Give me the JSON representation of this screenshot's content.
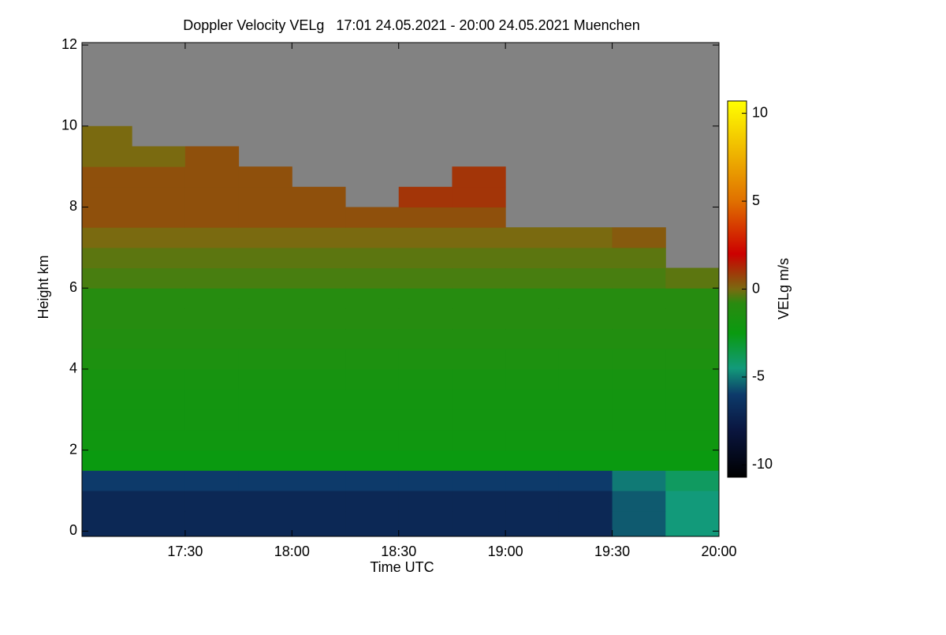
{
  "chart_data": {
    "type": "heatmap",
    "title": "Doppler Velocity VELg   17:01 24.05.2021 - 20:00 24.05.2021 Muenchen",
    "x_label": "Time UTC",
    "y_label": "Height km",
    "colorbar_label": "VELg m/s",
    "xlim": [
      17.0167,
      20.0
    ],
    "xticks": [
      {
        "value": 17.5,
        "label": "17:30"
      },
      {
        "value": 18.0,
        "label": "18:00"
      },
      {
        "value": 18.5,
        "label": "18:30"
      },
      {
        "value": 19.0,
        "label": "19:00"
      },
      {
        "value": 19.5,
        "label": "19:30"
      },
      {
        "value": 20.0,
        "label": "20:00"
      }
    ],
    "ylim": [
      -0.13,
      12.06
    ],
    "yticks": [
      0,
      2,
      4,
      6,
      8,
      10,
      12
    ],
    "clim": [
      -10.7,
      10.7
    ],
    "cticks": [
      -10,
      -5,
      0,
      5,
      10
    ],
    "missing_color": "#828282",
    "colorscale": [
      [
        -10.7,
        "#000000"
      ],
      [
        -8,
        "#0a1640"
      ],
      [
        -6,
        "#0d3a6a"
      ],
      [
        -4.5,
        "#129a7a"
      ],
      [
        -2.5,
        "#0a9a10"
      ],
      [
        -0.8,
        "#2a8a10"
      ],
      [
        0,
        "#7a6a10"
      ],
      [
        2,
        "#cc0000"
      ],
      [
        5,
        "#e07000"
      ],
      [
        10.7,
        "#ffff00"
      ]
    ],
    "x": [
      17.125,
      17.375,
      17.625,
      17.875,
      18.125,
      18.375,
      18.625,
      18.875,
      19.125,
      19.375,
      19.625,
      19.875
    ],
    "y": [
      0.25,
      0.75,
      1.25,
      1.75,
      2.25,
      2.75,
      3.25,
      3.75,
      4.25,
      4.75,
      5.25,
      5.75,
      6.25,
      6.75,
      7.25,
      7.75,
      8.25,
      8.75,
      9.25,
      9.75,
      10.25,
      10.75,
      11.25,
      11.75
    ],
    "z": [
      [
        -7,
        -7,
        -7,
        -7,
        -7,
        -7,
        -7,
        -7,
        -7,
        -7,
        -5.5,
        -4.5
      ],
      [
        -7,
        -7,
        -7,
        -7,
        -7,
        -7,
        -7,
        -7,
        -7,
        -7,
        -5.5,
        -4.5
      ],
      [
        -6,
        -6,
        -6,
        -6,
        -6,
        -6,
        -6,
        -6,
        -6,
        -6,
        -5,
        -4
      ],
      [
        -2.5,
        -2.5,
        -2.5,
        -2.5,
        -2.5,
        -2.5,
        -2.5,
        -2.5,
        -2.5,
        -2.5,
        -2.5,
        -2.5
      ],
      [
        -2.2,
        -2.2,
        -2.2,
        -2.2,
        -2.2,
        -2.2,
        -2.2,
        -2.2,
        -2.2,
        -2.2,
        -2.2,
        -2.2
      ],
      [
        -2,
        -2,
        -2,
        -2,
        -2,
        -2,
        -2,
        -2,
        -2,
        -2,
        -2,
        -2
      ],
      [
        -2,
        -2,
        -2,
        -2,
        -2,
        -2,
        -2,
        -2,
        -2,
        -2,
        -2,
        -2
      ],
      [
        -1.8,
        -1.8,
        -1.8,
        -1.8,
        -1.8,
        -1.8,
        -1.8,
        -1.8,
        -1.8,
        -1.8,
        -1.8,
        -1.8
      ],
      [
        -1.5,
        -1.5,
        -1.5,
        -1.5,
        -1.5,
        -1.5,
        -1.5,
        -1.5,
        -1.5,
        -1.5,
        -1.5,
        -1.5
      ],
      [
        -1.2,
        -1.2,
        -1.2,
        -1.2,
        -1.2,
        -1.2,
        -1.2,
        -1.2,
        -1.2,
        -1.2,
        -1.2,
        -1.2
      ],
      [
        -1,
        -1,
        -1,
        -1,
        -1,
        -1,
        -1,
        -1,
        -1,
        -1,
        -1,
        -1
      ],
      [
        -1,
        -1,
        -1,
        -1,
        -1,
        -1,
        -1,
        -1,
        -1,
        -1,
        -1,
        -1
      ],
      [
        -0.5,
        -0.5,
        -0.5,
        -0.5,
        -0.5,
        -0.5,
        -0.5,
        -0.5,
        -0.5,
        -0.5,
        -0.5,
        -0.3
      ],
      [
        -0.3,
        -0.3,
        -0.3,
        -0.3,
        -0.3,
        -0.3,
        -0.3,
        -0.3,
        -0.3,
        -0.3,
        -0.3,
        null
      ],
      [
        0,
        0,
        0,
        0,
        0,
        0,
        0,
        0,
        0,
        0,
        0.3,
        null
      ],
      [
        0.5,
        0.5,
        0.5,
        0.5,
        0.5,
        0.5,
        0.5,
        0.5,
        null,
        null,
        null,
        null
      ],
      [
        0.5,
        0.5,
        0.5,
        0.5,
        0.5,
        null,
        1,
        1,
        null,
        null,
        null,
        null
      ],
      [
        0.5,
        0.5,
        0.5,
        0.5,
        null,
        null,
        null,
        1,
        null,
        null,
        null,
        null
      ],
      [
        0,
        0,
        0.5,
        null,
        null,
        null,
        null,
        null,
        null,
        null,
        null,
        null
      ],
      [
        0,
        null,
        null,
        null,
        null,
        null,
        null,
        null,
        null,
        null,
        null,
        null
      ],
      [
        null,
        null,
        null,
        null,
        null,
        null,
        null,
        null,
        null,
        null,
        null,
        null
      ],
      [
        null,
        null,
        null,
        null,
        null,
        null,
        null,
        null,
        null,
        null,
        null,
        null
      ],
      [
        null,
        null,
        null,
        null,
        null,
        null,
        null,
        null,
        null,
        null,
        null,
        null
      ],
      [
        null,
        null,
        null,
        null,
        null,
        null,
        null,
        null,
        null,
        null,
        null,
        null
      ]
    ]
  }
}
